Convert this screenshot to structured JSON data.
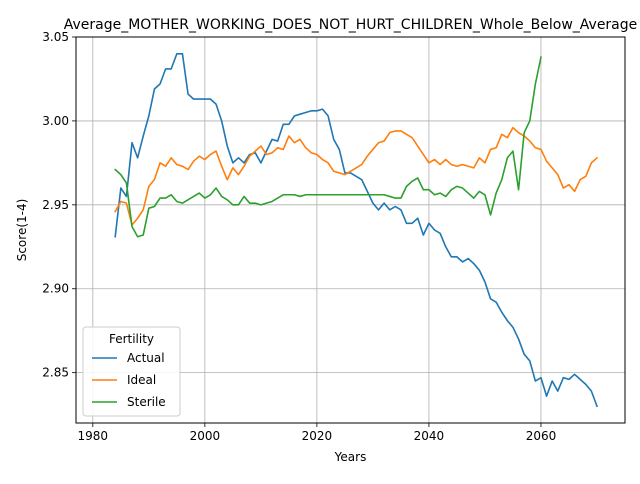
{
  "chart_data": {
    "type": "line",
    "title": "Average_MOTHER_WORKING_DOES_NOT_HURT_CHILDREN_Whole_Below_Average",
    "xlabel": "Years",
    "ylabel": "Score(1-4)",
    "xlim": [
      1977,
      2075
    ],
    "ylim": [
      2.82,
      3.05
    ],
    "x_ticks": [
      1980,
      2000,
      2020,
      2040,
      2060
    ],
    "x_tick_labels": [
      "1980",
      "2000",
      "2020",
      "2040",
      "2060"
    ],
    "y_ticks": [
      2.85,
      2.9,
      2.95,
      3.0,
      3.05
    ],
    "y_tick_labels": [
      "2.85",
      "2.90",
      "2.95",
      "3.00",
      "3.05"
    ],
    "grid": true,
    "legend": {
      "title": "Fertility",
      "placement": "lower-left"
    },
    "series": [
      {
        "name": "Actual",
        "color": "#1f77b4",
        "x": [
          1984,
          1985,
          1986,
          1987,
          1988,
          1989,
          1990,
          1991,
          1992,
          1993,
          1994,
          1995,
          1996,
          1997,
          1998,
          1999,
          2000,
          2001,
          2002,
          2003,
          2004,
          2005,
          2006,
          2007,
          2008,
          2009,
          2010,
          2011,
          2012,
          2013,
          2014,
          2015,
          2016,
          2017,
          2018,
          2019,
          2020,
          2021,
          2022,
          2023,
          2024,
          2025,
          2026,
          2027,
          2028,
          2029,
          2030,
          2031,
          2032,
          2033,
          2034,
          2035,
          2036,
          2037,
          2038,
          2039,
          2040,
          2041,
          2042,
          2043,
          2044,
          2045,
          2046,
          2047,
          2048,
          2049,
          2050,
          2051,
          2052,
          2053,
          2054,
          2055,
          2056,
          2057,
          2058,
          2059,
          2060,
          2061,
          2062,
          2063,
          2064,
          2065,
          2066,
          2067,
          2068,
          2069,
          2070
        ],
        "values": [
          2.931,
          2.96,
          2.955,
          2.987,
          2.978,
          2.991,
          3.003,
          3.019,
          3.022,
          3.031,
          3.031,
          3.04,
          3.04,
          3.016,
          3.013,
          3.013,
          3.013,
          3.013,
          3.01,
          3.0,
          2.985,
          2.975,
          2.978,
          2.975,
          2.98,
          2.981,
          2.975,
          2.982,
          2.989,
          2.988,
          2.998,
          2.998,
          3.003,
          3.004,
          3.005,
          3.006,
          3.006,
          3.007,
          3.003,
          2.989,
          2.983,
          2.969,
          2.969,
          2.967,
          2.965,
          2.958,
          2.951,
          2.947,
          2.951,
          2.947,
          2.949,
          2.947,
          2.939,
          2.939,
          2.942,
          2.932,
          2.939,
          2.935,
          2.933,
          2.925,
          2.919,
          2.919,
          2.916,
          2.918,
          2.915,
          2.911,
          2.904,
          2.894,
          2.892,
          2.886,
          2.881,
          2.877,
          2.87,
          2.861,
          2.857,
          2.845,
          2.847,
          2.836,
          2.845,
          2.839,
          2.847,
          2.846,
          2.849,
          2.846,
          2.843,
          2.839,
          2.83
        ]
      },
      {
        "name": "Ideal",
        "color": "#ff7f0e",
        "x": [
          1984,
          1985,
          1986,
          1987,
          1988,
          1989,
          1990,
          1991,
          1992,
          1993,
          1994,
          1995,
          1996,
          1997,
          1998,
          1999,
          2000,
          2001,
          2002,
          2003,
          2004,
          2005,
          2006,
          2007,
          2008,
          2009,
          2010,
          2011,
          2012,
          2013,
          2014,
          2015,
          2016,
          2017,
          2018,
          2019,
          2020,
          2021,
          2022,
          2023,
          2024,
          2025,
          2026,
          2027,
          2028,
          2029,
          2030,
          2031,
          2032,
          2033,
          2034,
          2035,
          2036,
          2037,
          2038,
          2039,
          2040,
          2041,
          2042,
          2043,
          2044,
          2045,
          2046,
          2047,
          2048,
          2049,
          2050,
          2051,
          2052,
          2053,
          2054,
          2055,
          2056,
          2057,
          2058,
          2059,
          2060,
          2061,
          2062,
          2063,
          2064,
          2065,
          2066,
          2067,
          2068,
          2069,
          2070
        ],
        "values": [
          2.946,
          2.952,
          2.951,
          2.938,
          2.942,
          2.947,
          2.961,
          2.965,
          2.975,
          2.973,
          2.978,
          2.974,
          2.973,
          2.971,
          2.976,
          2.979,
          2.977,
          2.98,
          2.982,
          2.973,
          2.965,
          2.972,
          2.968,
          2.973,
          2.979,
          2.982,
          2.985,
          2.98,
          2.981,
          2.984,
          2.983,
          2.991,
          2.987,
          2.989,
          2.984,
          2.981,
          2.98,
          2.977,
          2.975,
          2.97,
          2.969,
          2.968,
          2.97,
          2.972,
          2.974,
          2.979,
          2.983,
          2.987,
          2.988,
          2.993,
          2.994,
          2.994,
          2.992,
          2.99,
          2.985,
          2.98,
          2.975,
          2.977,
          2.974,
          2.977,
          2.974,
          2.973,
          2.974,
          2.973,
          2.972,
          2.978,
          2.975,
          2.983,
          2.984,
          2.992,
          2.99,
          2.996,
          2.993,
          2.991,
          2.988,
          2.984,
          2.983,
          2.976,
          2.972,
          2.968,
          2.96,
          2.962,
          2.958,
          2.965,
          2.967,
          2.975,
          2.978
        ]
      },
      {
        "name": "Sterile",
        "color": "#2ca02c",
        "x": [
          1984,
          1985,
          1986,
          1987,
          1988,
          1989,
          1990,
          1991,
          1992,
          1993,
          1994,
          1995,
          1996,
          1997,
          1998,
          1999,
          2000,
          2001,
          2002,
          2003,
          2004,
          2005,
          2006,
          2007,
          2008,
          2009,
          2010,
          2011,
          2012,
          2013,
          2014,
          2015,
          2016,
          2017,
          2018,
          2019,
          2020,
          2021,
          2022,
          2023,
          2024,
          2025,
          2026,
          2027,
          2028,
          2029,
          2030,
          2031,
          2032,
          2033,
          2034,
          2035,
          2036,
          2037,
          2038,
          2039,
          2040,
          2041,
          2042,
          2043,
          2044,
          2045,
          2046,
          2047,
          2048,
          2049,
          2050,
          2051,
          2052,
          2053,
          2054,
          2055,
          2056,
          2057,
          2058,
          2059,
          2060
        ],
        "values": [
          2.971,
          2.968,
          2.963,
          2.937,
          2.931,
          2.932,
          2.948,
          2.949,
          2.954,
          2.954,
          2.956,
          2.952,
          2.951,
          2.953,
          2.955,
          2.957,
          2.954,
          2.956,
          2.96,
          2.955,
          2.953,
          2.95,
          2.95,
          2.955,
          2.951,
          2.951,
          2.95,
          2.951,
          2.952,
          2.954,
          2.956,
          2.956,
          2.956,
          2.955,
          2.956,
          2.956,
          2.956,
          2.956,
          2.956,
          2.956,
          2.956,
          2.956,
          2.956,
          2.956,
          2.956,
          2.956,
          2.956,
          2.956,
          2.956,
          2.955,
          2.954,
          2.954,
          2.961,
          2.964,
          2.966,
          2.959,
          2.959,
          2.956,
          2.957,
          2.955,
          2.959,
          2.961,
          2.96,
          2.957,
          2.954,
          2.958,
          2.956,
          2.944,
          2.957,
          2.965,
          2.978,
          2.982,
          2.959,
          2.993,
          3.0,
          3.022,
          3.038
        ]
      }
    ]
  }
}
